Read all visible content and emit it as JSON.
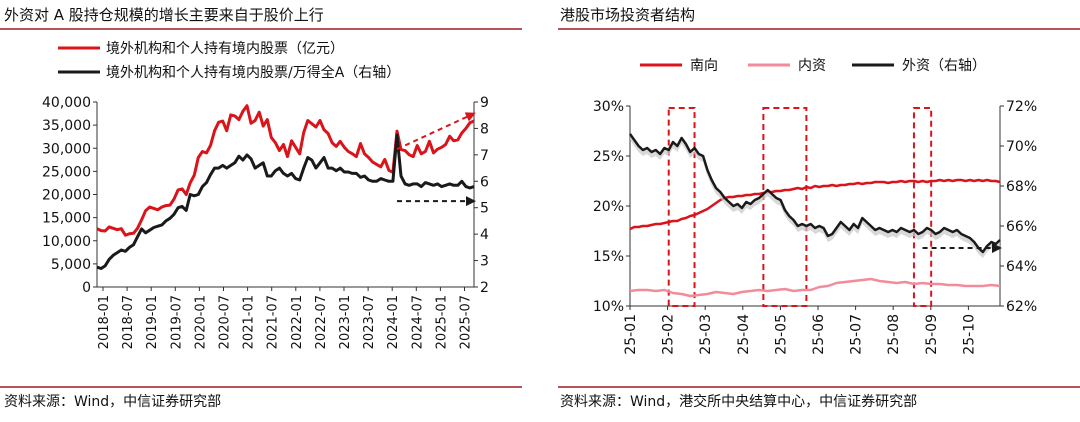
{
  "colors": {
    "primary_red": "#d9141b",
    "pink": "#f28b9a",
    "black": "#1a1a1a",
    "title_rule": "#9b1b1b",
    "grey_area": "#c8c8c8"
  },
  "left_panel": {
    "title": "外资对 A 股持仓规模的增长主要来自于股价上行",
    "source": "资料来源：Wind，中信证券研究部",
    "legend": [
      {
        "label": "境外机构和个人持有境内股票（亿元）",
        "color": "#d9141b"
      },
      {
        "label": "境外机构和个人持有境内股票/万得全A（右轴）",
        "color": "#1a1a1a"
      }
    ]
  },
  "right_panel": {
    "title": "港股市场投资者结构",
    "source": "资料来源：Wind，港交所中央结算中心，中信证券研究部",
    "legend": [
      {
        "label": "南向",
        "color": "#d9141b"
      },
      {
        "label": "内资",
        "color": "#f28b9a"
      },
      {
        "label": "外资（右轴）",
        "color": "#1a1a1a"
      }
    ]
  },
  "chart_data": [
    {
      "type": "line",
      "title": "外资对 A 股持仓规模的增长主要来自于股价上行",
      "x_ticks": [
        "2018-01",
        "2018-07",
        "2019-01",
        "2019-07",
        "2020-01",
        "2020-07",
        "2021-01",
        "2021-07",
        "2022-01",
        "2022-07",
        "2023-01",
        "2023-07",
        "2024-01",
        "2024-07",
        "2025-01",
        "2025-07"
      ],
      "y_left": {
        "range": [
          0,
          40000
        ],
        "ticks": [
          "0",
          "5,000",
          "10,000",
          "15,000",
          "20,000",
          "25,000",
          "30,000",
          "35,000",
          "40,000"
        ]
      },
      "y_right": {
        "range": [
          2,
          9
        ],
        "ticks": [
          "2",
          "3",
          "4",
          "5",
          "6",
          "7",
          "8",
          "9"
        ]
      },
      "series": [
        {
          "name": "境外机构和个人持有境内股票（亿元）",
          "axis": "left",
          "x": [
            0,
            1,
            2,
            3,
            4,
            5,
            6,
            7,
            8,
            9,
            10,
            11,
            12,
            13,
            14,
            15,
            16,
            17,
            18,
            19,
            20,
            21,
            22,
            23,
            24,
            25,
            26,
            27,
            28,
            29,
            30,
            31,
            32,
            33,
            34,
            35,
            36,
            37,
            38,
            39,
            40,
            41,
            42,
            43,
            44,
            45,
            46,
            47,
            48,
            49,
            50,
            51,
            52,
            53,
            54,
            55,
            56,
            57,
            58,
            59,
            60,
            61,
            62,
            63,
            64,
            65,
            66,
            67,
            68,
            69,
            70,
            71,
            72,
            73,
            74,
            75,
            76,
            77,
            78,
            79,
            80,
            81,
            82,
            83,
            84,
            85,
            86,
            87,
            88,
            89,
            90,
            91,
            92,
            93
          ],
          "y": [
            12600,
            12200,
            12100,
            13000,
            12700,
            12400,
            12600,
            11200,
            11500,
            11600,
            12700,
            14500,
            16500,
            17300,
            17000,
            16700,
            17300,
            17600,
            17700,
            19000,
            21000,
            21200,
            20000,
            22500,
            24200,
            28000,
            29300,
            29000,
            30600,
            33800,
            35600,
            35900,
            33800,
            37200,
            37000,
            36200,
            38000,
            39200,
            35400,
            36000,
            37800,
            34800,
            36200,
            32300,
            31200,
            29500,
            30800,
            28200,
            31600,
            30200,
            28800,
            33400,
            36000,
            35300,
            34600,
            36000,
            34000,
            33200,
            31200,
            30400,
            31500,
            30200,
            29300,
            28800,
            28200,
            31000,
            28800,
            28000,
            27000,
            26500,
            26000,
            27600,
            25200,
            24800,
            33700,
            29700,
            29500,
            28600,
            28200,
            30600,
            28800,
            29300,
            31500,
            29000,
            29800,
            30200,
            30800,
            32600,
            31600,
            31800,
            33300,
            34300,
            35500,
            35900
          ]
        },
        {
          "name": "境外机构和个人持有境内股票/万得全A（右轴）",
          "axis": "right",
          "x": [
            0,
            1,
            2,
            3,
            4,
            5,
            6,
            7,
            8,
            9,
            10,
            11,
            12,
            13,
            14,
            15,
            16,
            17,
            18,
            19,
            20,
            21,
            22,
            23,
            24,
            25,
            26,
            27,
            28,
            29,
            30,
            31,
            32,
            33,
            34,
            35,
            36,
            37,
            38,
            39,
            40,
            41,
            42,
            43,
            44,
            45,
            46,
            47,
            48,
            49,
            50,
            51,
            52,
            53,
            54,
            55,
            56,
            57,
            58,
            59,
            60,
            61,
            62,
            63,
            64,
            65,
            66,
            67,
            68,
            69,
            70,
            71,
            72,
            73,
            74,
            75,
            76,
            77,
            78,
            79,
            80,
            81,
            82,
            83,
            84,
            85,
            86,
            87,
            88,
            89,
            90,
            91,
            92,
            93
          ],
          "y": [
            2.75,
            2.7,
            2.8,
            3.05,
            3.2,
            3.3,
            3.4,
            3.35,
            3.5,
            3.6,
            3.9,
            4.2,
            4.05,
            4.15,
            4.25,
            4.3,
            4.35,
            4.5,
            4.6,
            4.75,
            5.0,
            5.05,
            4.9,
            5.5,
            5.45,
            5.5,
            5.8,
            5.95,
            6.25,
            6.5,
            6.5,
            6.6,
            6.5,
            6.6,
            6.7,
            6.95,
            6.8,
            7.0,
            6.85,
            6.5,
            6.6,
            6.7,
            6.2,
            6.2,
            6.4,
            6.5,
            6.3,
            6.2,
            6.3,
            6.1,
            6.05,
            6.5,
            6.9,
            6.8,
            6.5,
            6.7,
            6.9,
            6.5,
            6.5,
            6.4,
            6.5,
            6.35,
            6.35,
            6.3,
            6.3,
            6.15,
            6.2,
            6.05,
            6.0,
            6.0,
            6.1,
            6.05,
            6.0,
            6.0,
            7.75,
            6.2,
            5.9,
            5.85,
            5.9,
            5.9,
            5.8,
            5.95,
            5.9,
            5.85,
            5.9,
            5.8,
            5.85,
            5.9,
            5.85,
            5.85,
            6.0,
            5.8,
            5.75,
            5.8
          ]
        }
      ],
      "annotations": [
        {
          "type": "dashed-arrow",
          "color": "#d9141b",
          "from": [
            74,
            29800
          ],
          "to": [
            93,
            37500
          ]
        },
        {
          "type": "dashed-arrow",
          "color": "#1a1a1a",
          "from": [
            74,
            5.25
          ],
          "to": [
            93,
            5.25
          ]
        }
      ]
    },
    {
      "type": "line",
      "title": "港股市场投资者结构",
      "x_ticks": [
        "25-01",
        "25-02",
        "25-03",
        "25-04",
        "25-05",
        "25-06",
        "25-07",
        "25-08",
        "25-09",
        "25-10"
      ],
      "y_left": {
        "range": [
          10,
          30
        ],
        "ticks": [
          "10%",
          "15%",
          "20%",
          "25%",
          "30%"
        ]
      },
      "y_right": {
        "range": [
          62,
          72
        ],
        "ticks": [
          "62%",
          "64%",
          "66%",
          "68%",
          "70%",
          "72%"
        ]
      },
      "series": [
        {
          "name": "南向",
          "axis": "left",
          "x": [
            0,
            0.5,
            1,
            1.5,
            2,
            2.5,
            3,
            3.5,
            4,
            4.5,
            5,
            5.5,
            6,
            6.5,
            7,
            7.5,
            8,
            8.5,
            9,
            9.5,
            10,
            10.5,
            11,
            11.5,
            12,
            12.5,
            13,
            13.5,
            14,
            14.5,
            15,
            15.5,
            16,
            16.5,
            17,
            17.5,
            18,
            18.5,
            19,
            19.5,
            20,
            20.5,
            21,
            21.5,
            22,
            22.5,
            23,
            23.5,
            24,
            24.5,
            25,
            25.5,
            26,
            26.5,
            27,
            27.5,
            28,
            28.5,
            29,
            29.5,
            30,
            30.5,
            31,
            31.5,
            32,
            32.5,
            33,
            33.5,
            34,
            34.5,
            35,
            35.5,
            36,
            36.5,
            37,
            37.5,
            38,
            38.5,
            39,
            39.5,
            40,
            40.5,
            41,
            41.5,
            42,
            42.5,
            43
          ],
          "y": [
            17.7,
            17.9,
            17.9,
            18.0,
            18.0,
            18.1,
            18.2,
            18.2,
            18.3,
            18.4,
            18.5,
            18.5,
            18.7,
            18.8,
            19.0,
            19.1,
            19.3,
            19.5,
            19.7,
            20.0,
            20.3,
            20.6,
            20.8,
            20.9,
            20.9,
            21.0,
            21.0,
            21.1,
            21.1,
            21.2,
            21.2,
            21.3,
            21.4,
            21.4,
            21.5,
            21.5,
            21.6,
            21.6,
            21.7,
            21.8,
            21.7,
            21.9,
            21.8,
            22.0,
            21.9,
            22.0,
            22.0,
            22.1,
            22.0,
            22.1,
            22.1,
            22.2,
            22.2,
            22.3,
            22.2,
            22.3,
            22.3,
            22.4,
            22.4,
            22.4,
            22.3,
            22.4,
            22.4,
            22.5,
            22.4,
            22.5,
            22.5,
            22.4,
            22.5,
            22.4,
            22.5,
            22.5,
            22.6,
            22.5,
            22.6,
            22.5,
            22.6,
            22.6,
            22.5,
            22.6,
            22.5,
            22.6,
            22.5,
            22.6,
            22.5,
            22.5,
            22.4
          ]
        },
        {
          "name": "内资",
          "axis": "left",
          "x": [
            0,
            1,
            2,
            3,
            4,
            5,
            6,
            7,
            8,
            9,
            10,
            11,
            12,
            13,
            14,
            15,
            16,
            17,
            18,
            19,
            20,
            21,
            22,
            23,
            24,
            25,
            26,
            27,
            28,
            29,
            30,
            31,
            32,
            33,
            34,
            35,
            36,
            37,
            38,
            39,
            40,
            41,
            42,
            43
          ],
          "y": [
            11.5,
            11.6,
            11.6,
            11.5,
            11.6,
            11.3,
            11.2,
            11.0,
            11.1,
            11.2,
            11.4,
            11.3,
            11.2,
            11.4,
            11.5,
            11.6,
            11.5,
            11.6,
            11.7,
            11.5,
            11.6,
            11.6,
            11.9,
            12.0,
            12.3,
            12.4,
            12.5,
            12.6,
            12.7,
            12.5,
            12.4,
            12.3,
            12.4,
            12.2,
            12.3,
            12.2,
            12.2,
            12.1,
            12.1,
            12.0,
            12.0,
            12.0,
            12.1,
            12.0
          ]
        },
        {
          "name": "外资（右轴）",
          "axis": "right",
          "x": [
            0,
            0.5,
            1,
            1.5,
            2,
            2.5,
            3,
            3.5,
            4,
            4.5,
            5,
            5.5,
            6,
            6.5,
            7,
            7.5,
            8,
            8.5,
            9,
            9.5,
            10,
            10.5,
            11,
            11.5,
            12,
            12.5,
            13,
            13.5,
            14,
            14.5,
            15,
            15.5,
            16,
            16.5,
            17,
            17.5,
            18,
            18.5,
            19,
            19.5,
            20,
            20.5,
            21,
            21.5,
            22,
            22.5,
            23,
            23.5,
            24,
            24.5,
            25,
            25.5,
            26,
            26.5,
            27,
            27.5,
            28,
            28.5,
            29,
            29.5,
            30,
            30.5,
            31,
            31.5,
            32,
            32.5,
            33,
            33.5,
            34,
            34.5,
            35,
            35.5,
            36,
            36.5,
            37,
            37.5,
            38,
            38.5,
            39,
            39.5,
            40,
            40.5,
            41,
            41.5,
            42,
            42.5,
            43
          ],
          "y": [
            70.6,
            70.3,
            70.0,
            69.8,
            69.9,
            69.7,
            69.8,
            69.6,
            69.9,
            69.8,
            70.2,
            70.0,
            70.4,
            70.1,
            69.7,
            69.9,
            69.6,
            69.5,
            68.8,
            68.3,
            67.9,
            67.7,
            67.4,
            67.2,
            67.0,
            67.1,
            66.9,
            67.2,
            67.1,
            67.3,
            67.4,
            67.6,
            67.8,
            67.6,
            67.4,
            67.3,
            66.8,
            66.5,
            66.3,
            66.0,
            66.1,
            66.0,
            66.1,
            65.9,
            66.0,
            65.9,
            65.5,
            65.6,
            65.9,
            66.2,
            66.0,
            65.8,
            66.1,
            65.9,
            66.4,
            66.2,
            66.0,
            65.8,
            65.9,
            65.8,
            65.7,
            65.8,
            65.7,
            65.9,
            65.8,
            65.7,
            65.8,
            65.6,
            65.7,
            65.9,
            65.8,
            65.6,
            65.7,
            65.9,
            65.8,
            65.7,
            65.8,
            65.6,
            65.5,
            65.4,
            65.2,
            64.9,
            64.7,
            65.0,
            65.2,
            65.1,
            65.3
          ]
        }
      ],
      "highlight_ranges": [
        [
          4.5,
          7.5
        ],
        [
          15.5,
          20.5
        ],
        [
          33,
          35
        ]
      ],
      "annotations": [
        {
          "type": "dashed-arrow",
          "color": "#1a1a1a",
          "from": [
            34,
            64.9
          ],
          "to": [
            43,
            64.9
          ]
        }
      ]
    }
  ]
}
